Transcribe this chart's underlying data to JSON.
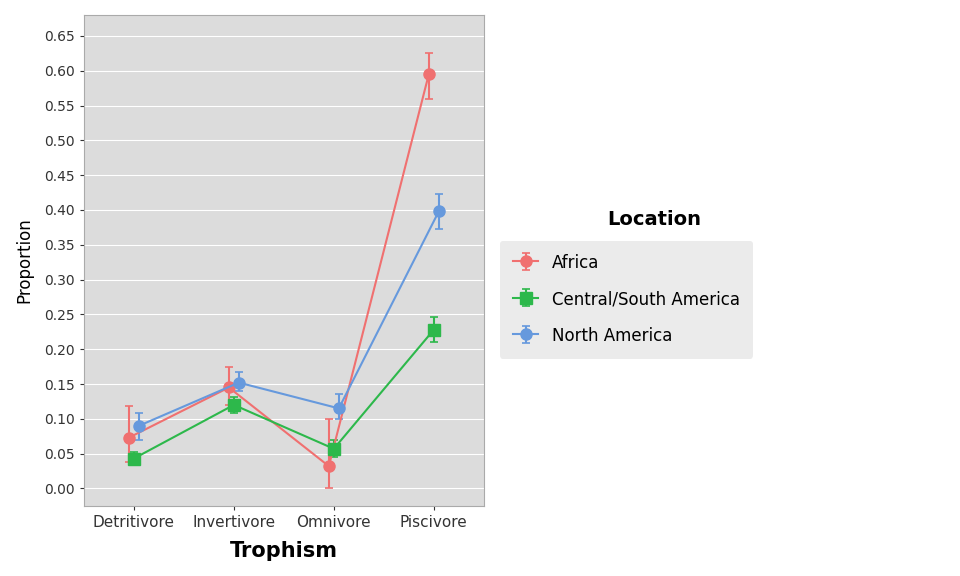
{
  "categories": [
    "Detritivore",
    "Invertivore",
    "Omnivore",
    "Piscivore"
  ],
  "series_order": [
    "Africa",
    "Central/South America",
    "North America"
  ],
  "series": {
    "Africa": {
      "y": [
        0.073,
        0.145,
        0.032,
        0.595
      ],
      "yerr_low": [
        0.035,
        0.025,
        0.032,
        0.035
      ],
      "yerr_high": [
        0.045,
        0.03,
        0.068,
        0.03
      ],
      "color": "#F07070",
      "marker": "o"
    },
    "Central/South America": {
      "y": [
        0.043,
        0.12,
        0.057,
        0.228
      ],
      "yerr_low": [
        0.01,
        0.012,
        0.012,
        0.018
      ],
      "yerr_high": [
        0.01,
        0.012,
        0.012,
        0.018
      ],
      "color": "#2DB84B",
      "marker": "s"
    },
    "North America": {
      "y": [
        0.09,
        0.152,
        0.115,
        0.398
      ],
      "yerr_low": [
        0.02,
        0.012,
        0.015,
        0.025
      ],
      "yerr_high": [
        0.018,
        0.015,
        0.02,
        0.025
      ],
      "color": "#6699DD",
      "marker": "o"
    }
  },
  "xlabel": "Trophism",
  "ylabel": "Proportion",
  "ylim": [
    -0.025,
    0.68
  ],
  "yticks": [
    0.0,
    0.05,
    0.1,
    0.15,
    0.2,
    0.25,
    0.3,
    0.35,
    0.4,
    0.45,
    0.5,
    0.55,
    0.6,
    0.65
  ],
  "legend_title": "Location",
  "figure_background": "#FFFFFF",
  "plot_area_color": "#DCDCDC",
  "grid_color": "#FFFFFF",
  "legend_box_color": "#EBEBEB",
  "offsets": {
    "Africa": -0.05,
    "Central/South America": 0.0,
    "North America": 0.05
  }
}
